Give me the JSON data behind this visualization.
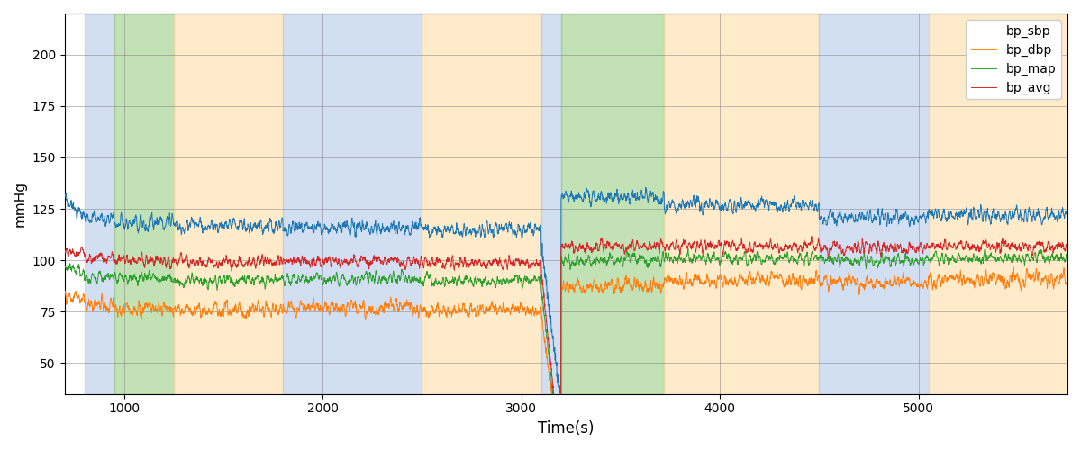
{
  "xlabel": "Time(s)",
  "ylabel": "mmHg",
  "xlim": [
    700,
    5750
  ],
  "ylim": [
    35,
    220
  ],
  "yticks": [
    50,
    75,
    100,
    125,
    150,
    175,
    200
  ],
  "xticks": [
    1000,
    2000,
    3000,
    4000,
    5000
  ],
  "line_colors": {
    "sbp": "#1f77b4",
    "dbp": "#ff7f0e",
    "map": "#2ca02c",
    "avg": "#d62728"
  },
  "legend_labels": [
    "bp_sbp",
    "bp_dbp",
    "bp_map",
    "bp_avg"
  ],
  "bg_bands": [
    {
      "xmin": 800,
      "xmax": 950,
      "color": "#aec6e8",
      "alpha": 0.55
    },
    {
      "xmin": 950,
      "xmax": 1250,
      "color": "#90c978",
      "alpha": 0.55
    },
    {
      "xmin": 1250,
      "xmax": 1800,
      "color": "#ffd9a0",
      "alpha": 0.55
    },
    {
      "xmin": 1800,
      "xmax": 2500,
      "color": "#aec6e8",
      "alpha": 0.55
    },
    {
      "xmin": 2500,
      "xmax": 3100,
      "color": "#ffd9a0",
      "alpha": 0.55
    },
    {
      "xmin": 3100,
      "xmax": 3200,
      "color": "#aec6e8",
      "alpha": 0.55
    },
    {
      "xmin": 3200,
      "xmax": 3720,
      "color": "#90c978",
      "alpha": 0.55
    },
    {
      "xmin": 3720,
      "xmax": 4500,
      "color": "#ffd9a0",
      "alpha": 0.55
    },
    {
      "xmin": 4500,
      "xmax": 5050,
      "color": "#aec6e8",
      "alpha": 0.55
    },
    {
      "xmin": 5050,
      "xmax": 5750,
      "color": "#ffd9a0",
      "alpha": 0.55
    }
  ],
  "segments": [
    {
      "ts": 700,
      "te": 800,
      "sbp": 130,
      "dbp": 82,
      "bpm": 96,
      "avg": 104,
      "sbp_decay": true
    },
    {
      "ts": 800,
      "te": 950,
      "sbp": 120,
      "dbp": 78,
      "bpm": 92,
      "avg": 101
    },
    {
      "ts": 950,
      "te": 1250,
      "sbp": 118,
      "dbp": 76,
      "bpm": 91,
      "avg": 100
    },
    {
      "ts": 1250,
      "te": 1800,
      "sbp": 117,
      "dbp": 76,
      "bpm": 90,
      "avg": 99
    },
    {
      "ts": 1800,
      "te": 2500,
      "sbp": 116,
      "dbp": 77,
      "bpm": 91,
      "avg": 100
    },
    {
      "ts": 2500,
      "te": 3100,
      "sbp": 115,
      "dbp": 76,
      "bpm": 90,
      "avg": 99
    },
    {
      "ts": 3100,
      "te": 3200,
      "sbp": 108,
      "dbp": 74,
      "bpm": 87,
      "avg": 96,
      "artifact": true
    },
    {
      "ts": 3200,
      "te": 3720,
      "sbp": 131,
      "dbp": 87,
      "bpm": 100,
      "avg": 107
    },
    {
      "ts": 3720,
      "te": 4500,
      "sbp": 127,
      "dbp": 90,
      "bpm": 101,
      "avg": 107
    },
    {
      "ts": 4500,
      "te": 5050,
      "sbp": 121,
      "dbp": 89,
      "bpm": 100,
      "avg": 106
    },
    {
      "ts": 5050,
      "te": 5750,
      "sbp": 122,
      "dbp": 91,
      "bpm": 101,
      "avg": 107
    }
  ],
  "seed": 17
}
